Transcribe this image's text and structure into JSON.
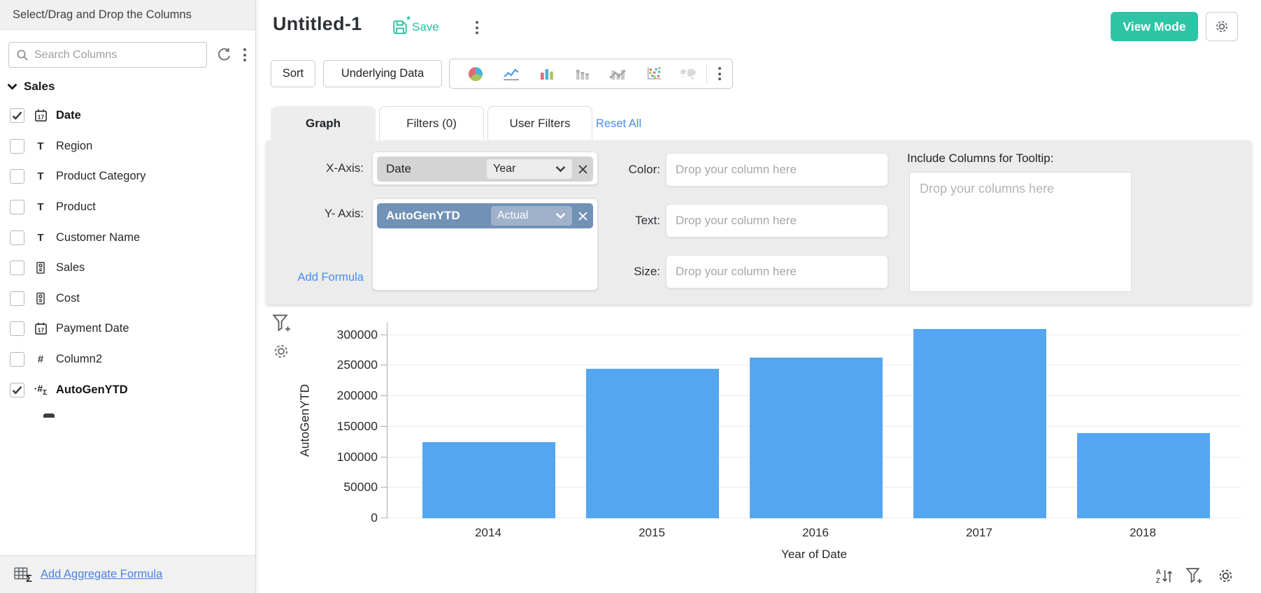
{
  "sidebar": {
    "header": "Select/Drag and Drop the Columns",
    "search_placeholder": "Search Columns",
    "section_label": "Sales",
    "items": [
      {
        "label": "Date",
        "icon": "calendar",
        "checked": true,
        "bold": true
      },
      {
        "label": "Region",
        "icon": "text",
        "checked": false,
        "bold": false
      },
      {
        "label": "Product Category",
        "icon": "text",
        "checked": false,
        "bold": false
      },
      {
        "label": "Product",
        "icon": "text",
        "checked": false,
        "bold": false
      },
      {
        "label": "Customer Name",
        "icon": "text",
        "checked": false,
        "bold": false
      },
      {
        "label": "Sales",
        "icon": "currency",
        "checked": false,
        "bold": false
      },
      {
        "label": "Cost",
        "icon": "currency",
        "checked": false,
        "bold": false
      },
      {
        "label": "Payment Date",
        "icon": "calendar",
        "checked": false,
        "bold": false
      },
      {
        "label": "Column2",
        "icon": "number",
        "checked": false,
        "bold": false
      },
      {
        "label": "AutoGenYTD",
        "icon": "formula",
        "checked": true,
        "bold": true
      }
    ],
    "footer_link": "Add Aggregate Formula"
  },
  "header": {
    "title": "Untitled-1",
    "save_label": "Save",
    "view_mode_label": "View Mode"
  },
  "toolbar": {
    "sort_label": "Sort",
    "underlying_data_label": "Underlying Data",
    "chart_icons": [
      "pie-chart",
      "line-chart",
      "bar-chart",
      "stacked-bar-chart",
      "bar-line-combo",
      "scatter-plot",
      "map-chart"
    ]
  },
  "tabs": {
    "graph": "Graph",
    "filters": "Filters (0)",
    "user_filters": "User Filters",
    "reset_all": "Reset All"
  },
  "config": {
    "x_axis_label": "X-Axis:",
    "x_column": "Date",
    "x_function": "Year",
    "y_axis_label": "Y- Axis:",
    "y_column": "AutoGenYTD",
    "y_function": "Actual",
    "add_formula_label": "Add Formula",
    "color_label": "Color:",
    "text_label": "Text:",
    "size_label": "Size:",
    "drop_single_placeholder": "Drop your column here",
    "tooltip_label": "Include Columns for Tooltip:",
    "tooltip_placeholder": "Drop your columns here"
  },
  "chart_data": {
    "type": "bar",
    "categories": [
      "2014",
      "2015",
      "2016",
      "2017",
      "2018"
    ],
    "values": [
      124000,
      244000,
      263000,
      310000,
      139000
    ],
    "title": "",
    "xlabel": "Year of Date",
    "ylabel": "AutoGenYTD",
    "yticks": [
      0,
      50000,
      100000,
      150000,
      200000,
      250000,
      300000
    ],
    "ylim": [
      0,
      320000
    ],
    "grid": true,
    "legend": false,
    "bar_color": "#55a6f1"
  },
  "colors": {
    "accent_teal": "#2dc5a5",
    "link_blue": "#4b8bf0",
    "bar_blue": "#55a6f1",
    "y_chip": "#7191b6",
    "y_chip_dd": "#9fb2ca",
    "panel_gray": "#ececed"
  }
}
